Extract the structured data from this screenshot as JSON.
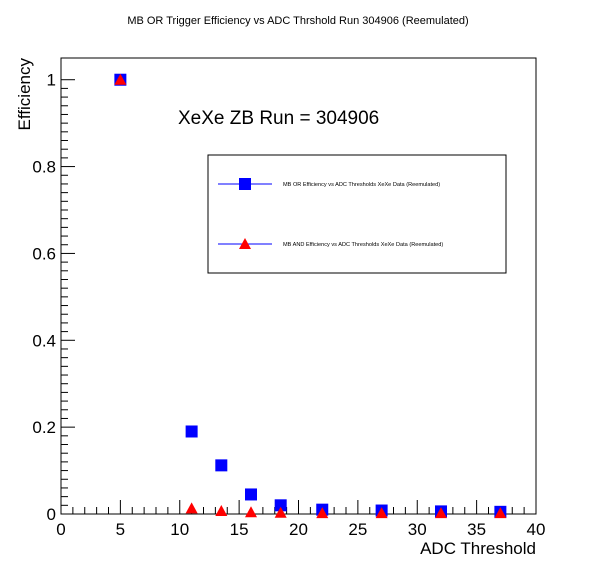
{
  "chart_data": {
    "type": "scatter",
    "title": "MB OR Trigger Efficiency vs ADC Thrshold Run 304906 (Reemulated)",
    "xlabel": "ADC Threshold",
    "ylabel": "Efficiency",
    "xlim": [
      0,
      40
    ],
    "ylim": [
      0,
      1.05
    ],
    "x_ticks": [
      0,
      5,
      10,
      15,
      20,
      25,
      30,
      35,
      40
    ],
    "y_ticks": [
      0,
      0.2,
      0.4,
      0.6,
      0.8,
      1
    ],
    "x_tick_labels": [
      "0",
      "5",
      "10",
      "15",
      "20",
      "25",
      "30",
      "35",
      "40"
    ],
    "y_tick_labels": [
      "0",
      "0.2",
      "0.4",
      "0.6",
      "0.8",
      "1"
    ],
    "annotation": "XeXe ZB Run = 304906",
    "grid": false,
    "legend_position": "upper-right",
    "series": [
      {
        "name": "MB OR Efficiency vs ADC Thresholds XeXe Data (Reemulated)",
        "marker": "square",
        "color": "#0000ff",
        "x": [
          5,
          11,
          13.5,
          16,
          18.5,
          22,
          27,
          32,
          37
        ],
        "y": [
          1.0,
          0.19,
          0.112,
          0.045,
          0.02,
          0.01,
          0.008,
          0.006,
          0.005
        ]
      },
      {
        "name": "MB AND Efficiency vs ADC Thresholds XeXe Data (Reemulated)",
        "marker": "triangle",
        "color": "#ff0000",
        "x": [
          5,
          11,
          13.5,
          16,
          18.5,
          22,
          27,
          32,
          37
        ],
        "y": [
          1.0,
          0.013,
          0.007,
          0.004,
          0.003,
          0.002,
          0.002,
          0.002,
          0.002
        ]
      }
    ]
  }
}
